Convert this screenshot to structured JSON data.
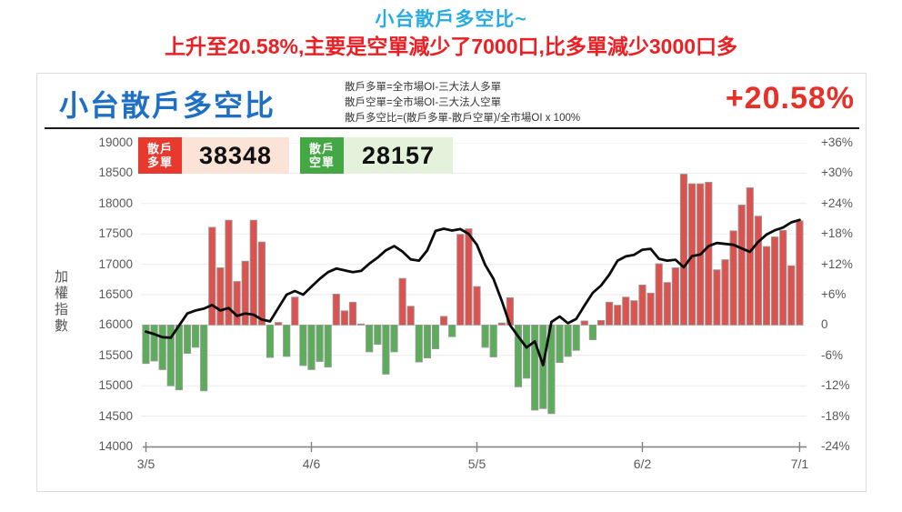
{
  "page": {
    "title": "小台散戶多空比~",
    "subtitle": "上升至20.58%,主要是空單減少了7000口,比多單減少3000口多"
  },
  "panel": {
    "title": "小台散戶多空比",
    "formulas": [
      "散戶多單=全市場OI-三大法人多單",
      "散戶空單=全市場OI-三大法人空單",
      "散戶多空比=(散戶多單-散戶空單)/全市場OI x 100%"
    ],
    "ratio_value": "+20.58%"
  },
  "badges": {
    "long": {
      "label_line1": "散戶",
      "label_line2": "多單",
      "value": "38348",
      "box_color": "#e8392e",
      "value_bg": "#fbe3d7"
    },
    "short": {
      "label_line1": "散戶",
      "label_line2": "空單",
      "value": "28157",
      "box_color": "#43a843",
      "value_bg": "#e4f2dc"
    }
  },
  "chart_data": {
    "type": "bar",
    "title": "小台散戶多空比",
    "series": [
      {
        "name": "散戶多空比(%)",
        "type": "bar",
        "axis": "right",
        "values": [
          -7.6,
          -7.1,
          -8.8,
          -12.0,
          -12.8,
          -5.6,
          -4.4,
          -13.0,
          19.3,
          11.3,
          20.7,
          8.6,
          12.6,
          20.7,
          16.4,
          -6.4,
          0.5,
          -6.2,
          5.5,
          -8.0,
          -8.8,
          -7.2,
          -8.3,
          6.1,
          2.8,
          4.5,
          0.2,
          -5.3,
          -3.8,
          -9.7,
          -5.3,
          9.2,
          3.7,
          -7.3,
          -6.5,
          -4.7,
          1.7,
          -2.3,
          17.9,
          19.0,
          7.6,
          -4.4,
          -6.3,
          0.4,
          5.4,
          -12.2,
          -10.5,
          -16.8,
          -16.5,
          -17.5,
          -7.4,
          -6.2,
          -5.0,
          0.8,
          -2.9,
          0.9,
          4.5,
          3.9,
          5.5,
          4.8,
          7.9,
          6.3,
          12.1,
          8.4,
          11.3,
          29.8,
          27.9,
          27.9,
          28.2,
          10.9,
          12.9,
          18.6,
          23.7,
          27.1,
          21.5,
          15.5,
          17.4,
          18.7,
          11.7,
          20.58
        ]
      },
      {
        "name": "加權指數",
        "type": "line",
        "axis": "left",
        "values": [
          15890,
          15850,
          15800,
          15790,
          15990,
          16190,
          16240,
          16270,
          16330,
          16240,
          16280,
          16150,
          16190,
          16170,
          16090,
          16060,
          16280,
          16500,
          16560,
          16500,
          16630,
          16760,
          16870,
          16930,
          16900,
          16870,
          16890,
          17010,
          17110,
          17230,
          17300,
          17210,
          17080,
          17060,
          17230,
          17550,
          17585,
          17555,
          17580,
          17500,
          17320,
          16990,
          16760,
          16400,
          16000,
          15810,
          15630,
          15730,
          15340,
          16050,
          16140,
          16030,
          16100,
          16320,
          16530,
          16650,
          16830,
          17060,
          17130,
          17155,
          17240,
          17255,
          17090,
          17060,
          17075,
          16950,
          17135,
          17160,
          17300,
          17350,
          17335,
          17320,
          17260,
          17205,
          17370,
          17490,
          17560,
          17605,
          17690,
          17730
        ]
      }
    ],
    "left_axis": {
      "label": "加權指數",
      "range": [
        14000,
        19000
      ],
      "ticks": [
        "19000",
        "18500",
        "18000",
        "17500",
        "17000",
        "16500",
        "16000",
        "15500",
        "15000",
        "14500",
        "14000"
      ]
    },
    "right_axis": {
      "label": "散戶多空比",
      "range": [
        -24,
        36
      ],
      "ticks": [
        "+36%",
        "+30%",
        "+24%",
        "+18%",
        "+12%",
        "+6%",
        "0",
        "-6%",
        "-12%",
        "-18%",
        "-24%"
      ]
    },
    "x_axis": {
      "ticks": [
        "3/5",
        "4/6",
        "5/5",
        "6/2",
        "7/1"
      ],
      "tick_indices": [
        0,
        20,
        40,
        60,
        79
      ]
    },
    "grid": true,
    "colors": {
      "bar_up": "#dc524e",
      "bar_down": "#5cad5a",
      "bar_stroke": "#999999",
      "line": "#0b0b0b",
      "grid": "#ebebeb",
      "axis": "#808080"
    }
  }
}
